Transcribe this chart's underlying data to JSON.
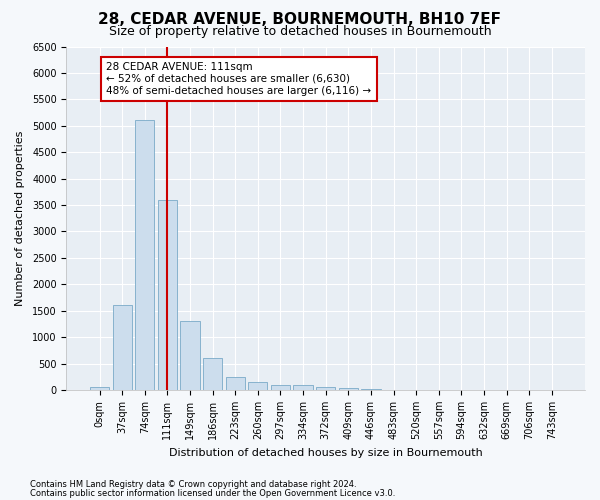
{
  "title": "28, CEDAR AVENUE, BOURNEMOUTH, BH10 7EF",
  "subtitle": "Size of property relative to detached houses in Bournemouth",
  "xlabel": "Distribution of detached houses by size in Bournemouth",
  "ylabel": "Number of detached properties",
  "footnote1": "Contains HM Land Registry data © Crown copyright and database right 2024.",
  "footnote2": "Contains public sector information licensed under the Open Government Licence v3.0.",
  "bar_labels": [
    "0sqm",
    "37sqm",
    "74sqm",
    "111sqm",
    "149sqm",
    "186sqm",
    "223sqm",
    "260sqm",
    "297sqm",
    "334sqm",
    "372sqm",
    "409sqm",
    "446sqm",
    "483sqm",
    "520sqm",
    "557sqm",
    "594sqm",
    "632sqm",
    "669sqm",
    "706sqm",
    "743sqm"
  ],
  "bar_values": [
    50,
    1600,
    5100,
    3600,
    1300,
    600,
    250,
    150,
    100,
    100,
    50,
    30,
    10,
    5,
    5,
    2,
    2,
    1,
    1,
    1,
    1
  ],
  "bar_color": "#ccdded",
  "bar_edge_color": "#7aaac8",
  "vline_x": 3,
  "vline_color": "#cc0000",
  "annotation_text": "28 CEDAR AVENUE: 111sqm\n← 52% of detached houses are smaller (6,630)\n48% of semi-detached houses are larger (6,116) →",
  "annotation_box_color": "#cc0000",
  "ylim": [
    0,
    6500
  ],
  "yticks": [
    0,
    500,
    1000,
    1500,
    2000,
    2500,
    3000,
    3500,
    4000,
    4500,
    5000,
    5500,
    6000,
    6500
  ],
  "bg_color": "#f5f8fb",
  "plot_bg_color": "#e8eef4",
  "grid_color": "#ffffff",
  "title_fontsize": 11,
  "subtitle_fontsize": 9,
  "ylabel_fontsize": 8,
  "xlabel_fontsize": 8,
  "tick_fontsize": 7,
  "footnote_fontsize": 6
}
